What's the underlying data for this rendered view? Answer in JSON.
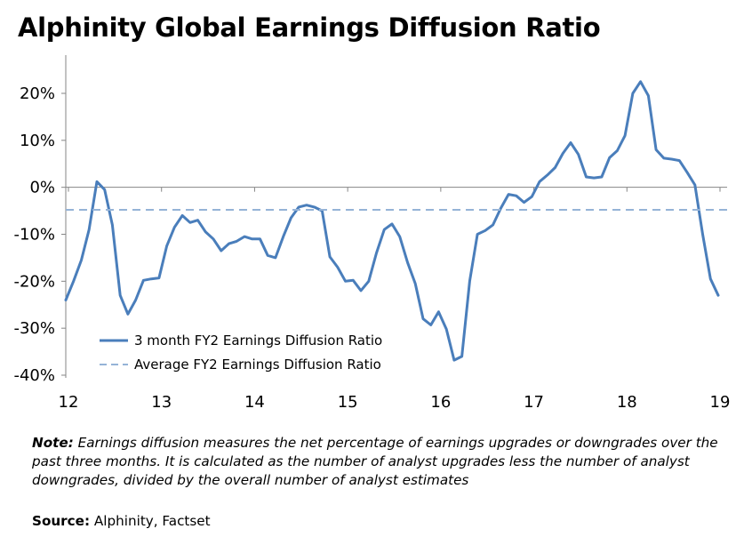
{
  "chart_data": {
    "type": "line",
    "title": "Alphinity Global Earnings Diffusion Ratio",
    "xlabel": "",
    "ylabel": "",
    "x_ticks": [
      "12",
      "13",
      "14",
      "15",
      "16",
      "17",
      "18",
      "19"
    ],
    "x_tick_values": [
      2012,
      2013,
      2014,
      2015,
      2016,
      2017,
      2018,
      2019
    ],
    "y_ticks": [
      "20%",
      "10%",
      "0%",
      "-10%",
      "-20%",
      "-30%",
      "-40%"
    ],
    "y_tick_values": [
      20,
      10,
      0,
      -10,
      -20,
      -30,
      -40
    ],
    "ylim": [
      -40,
      25
    ],
    "xlim": [
      2012,
      2019
    ],
    "series": [
      {
        "name": "3 month FY2 Earnings Diffusion Ratio",
        "color": "#4a7ebb",
        "style": "solid",
        "values": [
          -24,
          -20,
          -15.5,
          -9,
          1.2,
          -0.5,
          -8,
          -23,
          -27,
          -24,
          -19.8,
          -19.5,
          -19.3,
          -12.5,
          -8.5,
          -6,
          -7.5,
          -7,
          -9.5,
          -11,
          -13.5,
          -12,
          -11.5,
          -10.5,
          -11,
          -11,
          -14.5,
          -15,
          -10.5,
          -6.5,
          -4.2,
          -3.8,
          -4.2,
          -5,
          -14.8,
          -17,
          -20,
          -19.8,
          -22,
          -20,
          -14,
          -9,
          -7.8,
          -10.5,
          -16,
          -20.5,
          -28,
          -29.3,
          -26.5,
          -30.2,
          -36.8,
          -36,
          -20,
          -10,
          -9.2,
          -8,
          -4.5,
          -1.5,
          -1.8,
          -3.2,
          -2,
          1.2,
          2.6,
          4.2,
          7.2,
          9.5,
          7,
          2.2,
          2,
          2.2,
          6.3,
          7.8,
          11,
          20,
          22.5,
          19.5,
          8,
          6.2,
          6,
          5.7,
          3.2,
          0.5,
          -10,
          -19.5,
          -23
        ]
      },
      {
        "name": "Average FY2 Earnings Diffusion Ratio",
        "color": "#95b3d7",
        "style": "dashed",
        "values": [
          -4.8
        ]
      }
    ],
    "legend": "bottom-left"
  },
  "note": {
    "label": "Note:",
    "text": "Earnings diffusion measures the net percentage of earnings upgrades or downgrades over the past three months.  It is calculated as the number of analyst upgrades less the number of analyst downgrades, divided by the overall number of analyst estimates"
  },
  "source": {
    "label": "Source:",
    "text": "Alphinity, Factset"
  }
}
